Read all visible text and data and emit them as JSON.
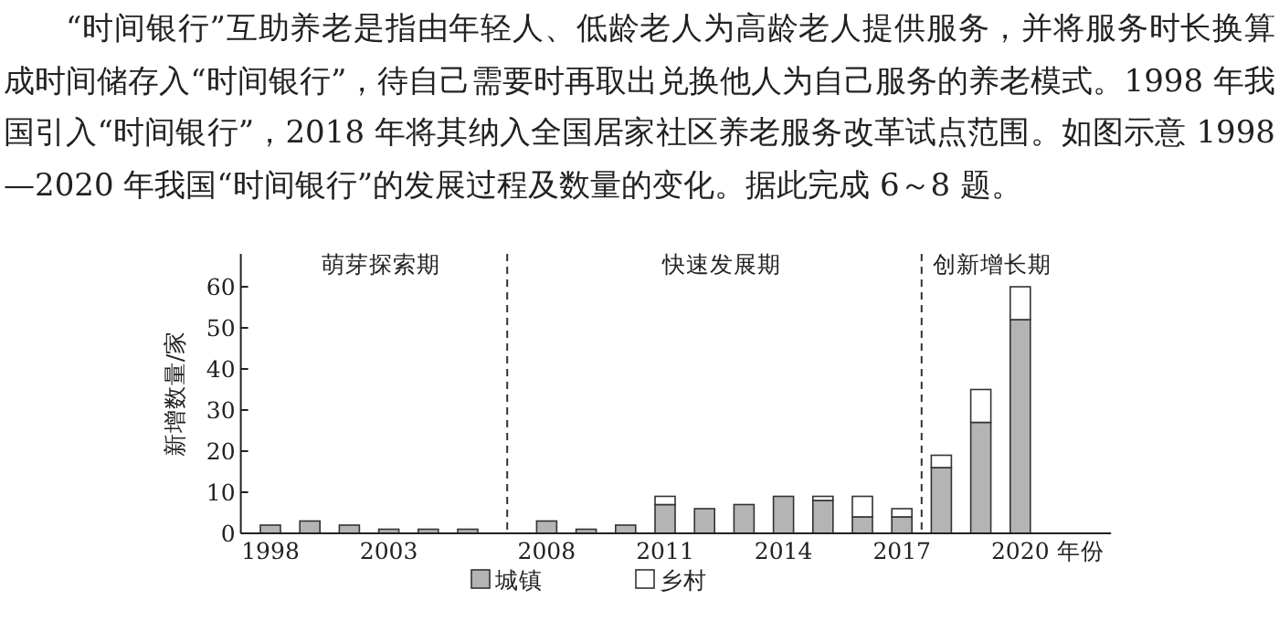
{
  "chart_data": {
    "type": "bar",
    "stacked": true,
    "categories": [
      "1998",
      null,
      null,
      "2003",
      null,
      null,
      null,
      "2008",
      null,
      null,
      "2011",
      null,
      null,
      "2014",
      null,
      null,
      "2017",
      null,
      null,
      "2020"
    ],
    "series": [
      {
        "name": "城镇",
        "color": "#b4b4b4",
        "values": [
          2,
          3,
          2,
          1,
          1,
          1,
          null,
          3,
          1,
          2,
          7,
          6,
          7,
          9,
          8,
          4,
          4,
          16,
          27,
          52
        ]
      },
      {
        "name": "乡村",
        "color": "#ffffff",
        "values": [
          null,
          null,
          null,
          null,
          null,
          null,
          null,
          null,
          null,
          null,
          2,
          null,
          null,
          null,
          1,
          5,
          2,
          3,
          8,
          8
        ]
      }
    ],
    "xlabel": "年份",
    "ylabel": "新增数量/家",
    "ylim": [
      0,
      68
    ],
    "yticks": [
      0,
      10,
      20,
      30,
      40,
      50,
      60
    ],
    "annotations": [
      "“时间银行”互助养老是指由年轻人、低龄老人为高龄老人提供服务，并将服务时长换算成时间储存入“时间银行”，待自己需要时再取出兑换他人为自己服务的养老模式。1998 年我国引入“时间银行”，2018 年将其纳入全国居家社区养老服务改革试点范围。如图示意 1998—2020 年我国“时间银行”的发展过程及数量的变化。据此完成 6～8 题。",
      "萌芽探索期",
      "快速发展期",
      "创新增长期"
    ],
    "legend": "bottom"
  }
}
